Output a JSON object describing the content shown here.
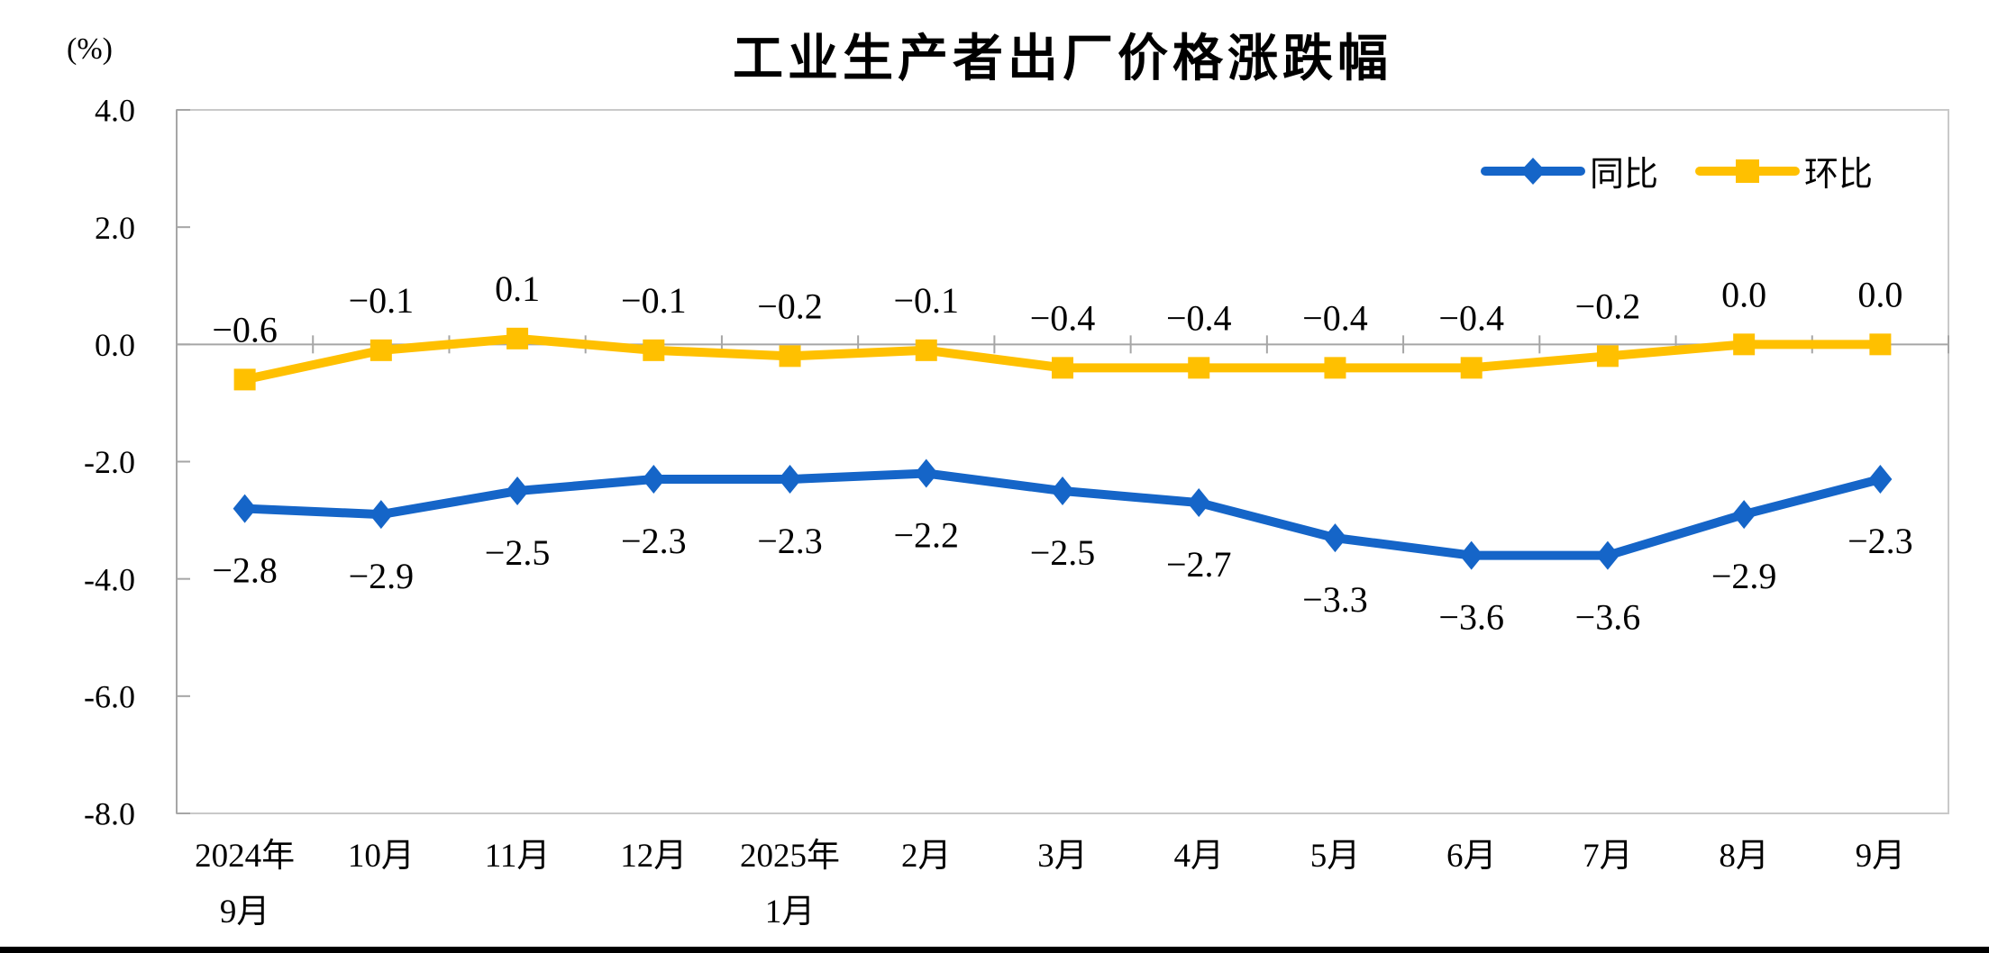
{
  "title": "工业生产者出厂价格涨跌幅",
  "unit_label": "(%)",
  "legend": [
    {
      "label": "同比",
      "color": "#1565C8",
      "marker": "diamond"
    },
    {
      "label": "环比",
      "color": "#FFC000",
      "marker": "square"
    }
  ],
  "chart_data": {
    "type": "line",
    "title": "工业生产者出厂价格涨跌幅",
    "ylabel": "(%)",
    "categories": [
      [
        "2024年",
        "9月"
      ],
      [
        "10月"
      ],
      [
        "11月"
      ],
      [
        "12月"
      ],
      [
        "2025年",
        "1月"
      ],
      [
        "2月"
      ],
      [
        "3月"
      ],
      [
        "4月"
      ],
      [
        "5月"
      ],
      [
        "6月"
      ],
      [
        "7月"
      ],
      [
        "8月"
      ],
      [
        "9月"
      ]
    ],
    "series": [
      {
        "name": "同比",
        "color": "#1565C8",
        "marker": "diamond",
        "label_position": "below",
        "values": [
          -2.8,
          -2.9,
          -2.5,
          -2.3,
          -2.3,
          -2.2,
          -2.5,
          -2.7,
          -3.3,
          -3.6,
          -3.6,
          -2.9,
          -2.3
        ],
        "labels": [
          "−2.8",
          "−2.9",
          "−2.5",
          "−2.3",
          "−2.3",
          "−2.2",
          "−2.5",
          "−2.7",
          "−3.3",
          "−3.6",
          "−3.6",
          "−2.9",
          "−2.3"
        ]
      },
      {
        "name": "环比",
        "color": "#FFC000",
        "marker": "square",
        "label_position": "above",
        "values": [
          -0.6,
          -0.1,
          0.1,
          -0.1,
          -0.2,
          -0.1,
          -0.4,
          -0.4,
          -0.4,
          -0.4,
          -0.2,
          0.0,
          0.0
        ],
        "labels": [
          "−0.6",
          "−0.1",
          "0.1",
          "−0.1",
          "−0.2",
          "−0.1",
          "−0.4",
          "−0.4",
          "−0.4",
          "−0.4",
          "−0.2",
          "0.0",
          "0.0"
        ]
      }
    ],
    "y_axis": {
      "min": -8.0,
      "max": 4.0,
      "step": 2.0,
      "tick_labels": [
        "4.0",
        "2.0",
        "0.0",
        "-2.0",
        "-4.0",
        "-6.0",
        "-8.0"
      ]
    },
    "grid": false,
    "legend_position": "top-right",
    "axis_color": "#A6A6A6",
    "border_color": "#C9C9C9"
  }
}
